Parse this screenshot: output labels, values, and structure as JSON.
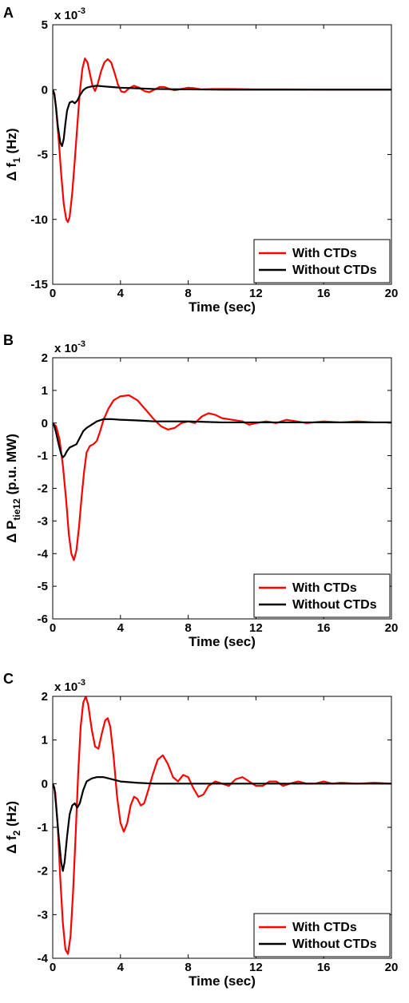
{
  "chart_data": [
    {
      "panel": "A",
      "type": "line",
      "exponent": [
        "x 10",
        "-3"
      ],
      "xlabel": "Time (sec)",
      "ylabel": [
        "Δ f",
        "1",
        " (Hz)"
      ],
      "xlim": [
        0,
        20
      ],
      "ylim": [
        -15,
        5
      ],
      "xticks": [
        0,
        4,
        8,
        12,
        16,
        20
      ],
      "yticks": [
        -15,
        -10,
        -5,
        0,
        5
      ],
      "legend_position": "bottom-right",
      "series": [
        {
          "name": "With CTDs",
          "color": "#ff0000",
          "points": [
            [
              0,
              0
            ],
            [
              0.1,
              -0.3
            ],
            [
              0.2,
              -1.5
            ],
            [
              0.35,
              -3.8
            ],
            [
              0.5,
              -6.5
            ],
            [
              0.65,
              -8.8
            ],
            [
              0.8,
              -10.0
            ],
            [
              0.9,
              -10.2
            ],
            [
              1.0,
              -9.8
            ],
            [
              1.15,
              -8.0
            ],
            [
              1.3,
              -5.5
            ],
            [
              1.45,
              -2.8
            ],
            [
              1.6,
              -0.2
            ],
            [
              1.75,
              1.6
            ],
            [
              1.9,
              2.4
            ],
            [
              2.05,
              2.1
            ],
            [
              2.2,
              1.2
            ],
            [
              2.35,
              0.3
            ],
            [
              2.5,
              -0.1
            ],
            [
              2.65,
              0.4
            ],
            [
              2.85,
              1.4
            ],
            [
              3.05,
              2.1
            ],
            [
              3.25,
              2.35
            ],
            [
              3.45,
              2.1
            ],
            [
              3.65,
              1.3
            ],
            [
              3.85,
              0.4
            ],
            [
              4.05,
              -0.15
            ],
            [
              4.25,
              -0.2
            ],
            [
              4.5,
              0.1
            ],
            [
              4.8,
              0.3
            ],
            [
              5.1,
              0.15
            ],
            [
              5.4,
              -0.1
            ],
            [
              5.7,
              -0.2
            ],
            [
              6.0,
              0.0
            ],
            [
              6.3,
              0.2
            ],
            [
              6.6,
              0.2
            ],
            [
              6.9,
              0.05
            ],
            [
              7.2,
              -0.05
            ],
            [
              7.6,
              0.05
            ],
            [
              8.0,
              0.15
            ],
            [
              8.4,
              0.1
            ],
            [
              8.8,
              0.02
            ],
            [
              9.5,
              0.05
            ],
            [
              10.5,
              0.05
            ],
            [
              12,
              0.02
            ],
            [
              14,
              0.02
            ],
            [
              16,
              0.0
            ],
            [
              18,
              0.0
            ],
            [
              20,
              0.0
            ]
          ]
        },
        {
          "name": "Without CTDs",
          "color": "#000000",
          "points": [
            [
              0,
              0
            ],
            [
              0.1,
              -0.4
            ],
            [
              0.2,
              -1.4
            ],
            [
              0.3,
              -2.8
            ],
            [
              0.45,
              -4.1
            ],
            [
              0.55,
              -4.35
            ],
            [
              0.65,
              -3.8
            ],
            [
              0.75,
              -2.6
            ],
            [
              0.85,
              -1.6
            ],
            [
              1.0,
              -1.0
            ],
            [
              1.15,
              -0.9
            ],
            [
              1.3,
              -1.05
            ],
            [
              1.45,
              -0.85
            ],
            [
              1.6,
              -0.45
            ],
            [
              1.8,
              -0.05
            ],
            [
              2.0,
              0.15
            ],
            [
              2.3,
              0.25
            ],
            [
              2.6,
              0.3
            ],
            [
              3.0,
              0.25
            ],
            [
              3.5,
              0.2
            ],
            [
              4.0,
              0.15
            ],
            [
              5,
              0.1
            ],
            [
              6,
              0.05
            ],
            [
              8,
              0.02
            ],
            [
              10,
              0.0
            ],
            [
              14,
              0.0
            ],
            [
              20,
              0.0
            ]
          ]
        }
      ]
    },
    {
      "panel": "B",
      "type": "line",
      "exponent": [
        "x 10",
        "-3"
      ],
      "xlabel": "Time (sec)",
      "ylabel": [
        "Δ P",
        "tie12",
        " (p.u. MW)"
      ],
      "xlim": [
        0,
        20
      ],
      "ylim": [
        -6,
        2
      ],
      "xticks": [
        0,
        4,
        8,
        12,
        16,
        20
      ],
      "yticks": [
        -6,
        -5,
        -4,
        -3,
        -2,
        -1,
        0,
        1,
        2
      ],
      "legend_position": "bottom-right",
      "series": [
        {
          "name": "With CTDs",
          "color": "#ff0000",
          "points": [
            [
              0,
              0
            ],
            [
              0.2,
              -0.1
            ],
            [
              0.4,
              -0.5
            ],
            [
              0.6,
              -1.3
            ],
            [
              0.8,
              -2.4
            ],
            [
              0.95,
              -3.4
            ],
            [
              1.1,
              -4.0
            ],
            [
              1.25,
              -4.2
            ],
            [
              1.4,
              -3.9
            ],
            [
              1.55,
              -3.2
            ],
            [
              1.7,
              -2.3
            ],
            [
              1.85,
              -1.5
            ],
            [
              2.0,
              -0.9
            ],
            [
              2.2,
              -0.7
            ],
            [
              2.4,
              -0.65
            ],
            [
              2.6,
              -0.55
            ],
            [
              2.8,
              -0.25
            ],
            [
              3.0,
              0.1
            ],
            [
              3.3,
              0.45
            ],
            [
              3.6,
              0.7
            ],
            [
              4.0,
              0.82
            ],
            [
              4.5,
              0.85
            ],
            [
              5.0,
              0.7
            ],
            [
              5.5,
              0.4
            ],
            [
              6.0,
              0.1
            ],
            [
              6.4,
              -0.1
            ],
            [
              6.8,
              -0.2
            ],
            [
              7.2,
              -0.15
            ],
            [
              7.6,
              0.0
            ],
            [
              8.0,
              0.05
            ],
            [
              8.4,
              0.0
            ],
            [
              8.8,
              0.2
            ],
            [
              9.2,
              0.3
            ],
            [
              9.6,
              0.25
            ],
            [
              10.0,
              0.15
            ],
            [
              10.6,
              0.1
            ],
            [
              11.2,
              0.05
            ],
            [
              11.6,
              -0.05
            ],
            [
              12.0,
              0.0
            ],
            [
              12.6,
              0.05
            ],
            [
              13.2,
              0.0
            ],
            [
              13.8,
              0.1
            ],
            [
              14.4,
              0.05
            ],
            [
              15.0,
              0.0
            ],
            [
              16,
              0.05
            ],
            [
              17,
              0.02
            ],
            [
              18,
              0.05
            ],
            [
              19,
              0.02
            ],
            [
              20,
              0.02
            ]
          ]
        },
        {
          "name": "Without CTDs",
          "color": "#000000",
          "points": [
            [
              0,
              0
            ],
            [
              0.1,
              -0.1
            ],
            [
              0.2,
              -0.3
            ],
            [
              0.35,
              -0.65
            ],
            [
              0.5,
              -0.95
            ],
            [
              0.6,
              -1.05
            ],
            [
              0.7,
              -1.0
            ],
            [
              0.85,
              -0.85
            ],
            [
              1.0,
              -0.75
            ],
            [
              1.2,
              -0.7
            ],
            [
              1.4,
              -0.65
            ],
            [
              1.6,
              -0.45
            ],
            [
              1.8,
              -0.25
            ],
            [
              2.0,
              -0.15
            ],
            [
              2.3,
              -0.05
            ],
            [
              2.6,
              0.05
            ],
            [
              3.0,
              0.12
            ],
            [
              3.5,
              0.12
            ],
            [
              4.0,
              0.1
            ],
            [
              5,
              0.08
            ],
            [
              6,
              0.05
            ],
            [
              8,
              0.05
            ],
            [
              10,
              0.02
            ],
            [
              14,
              0.02
            ],
            [
              20,
              0.02
            ]
          ]
        }
      ]
    },
    {
      "panel": "C",
      "type": "line",
      "exponent": [
        "x 10",
        "-3"
      ],
      "xlabel": "Time (sec)",
      "ylabel": [
        "Δ f",
        "2",
        " (Hz)"
      ],
      "xlim": [
        0,
        20
      ],
      "ylim": [
        -4,
        2
      ],
      "xticks": [
        0,
        4,
        8,
        12,
        16,
        20
      ],
      "yticks": [
        -4,
        -3,
        -2,
        -1,
        0,
        1,
        2
      ],
      "legend_position": "bottom-right",
      "series": [
        {
          "name": "With CTDs",
          "color": "#ff0000",
          "points": [
            [
              0,
              0
            ],
            [
              0.15,
              -0.2
            ],
            [
              0.3,
              -1.0
            ],
            [
              0.45,
              -2.2
            ],
            [
              0.6,
              -3.2
            ],
            [
              0.75,
              -3.8
            ],
            [
              0.9,
              -3.9
            ],
            [
              1.05,
              -3.5
            ],
            [
              1.2,
              -2.5
            ],
            [
              1.35,
              -1.2
            ],
            [
              1.5,
              0.2
            ],
            [
              1.65,
              1.3
            ],
            [
              1.8,
              1.85
            ],
            [
              1.95,
              2.0
            ],
            [
              2.1,
              1.8
            ],
            [
              2.3,
              1.25
            ],
            [
              2.5,
              0.85
            ],
            [
              2.7,
              0.8
            ],
            [
              2.9,
              1.15
            ],
            [
              3.1,
              1.45
            ],
            [
              3.25,
              1.5
            ],
            [
              3.4,
              1.3
            ],
            [
              3.6,
              0.6
            ],
            [
              3.8,
              -0.3
            ],
            [
              4.0,
              -0.9
            ],
            [
              4.2,
              -1.1
            ],
            [
              4.4,
              -0.9
            ],
            [
              4.6,
              -0.5
            ],
            [
              4.8,
              -0.3
            ],
            [
              5.0,
              -0.35
            ],
            [
              5.2,
              -0.5
            ],
            [
              5.4,
              -0.45
            ],
            [
              5.6,
              -0.2
            ],
            [
              5.9,
              0.2
            ],
            [
              6.2,
              0.55
            ],
            [
              6.5,
              0.65
            ],
            [
              6.8,
              0.45
            ],
            [
              7.1,
              0.15
            ],
            [
              7.4,
              0.05
            ],
            [
              7.7,
              0.2
            ],
            [
              8.0,
              0.15
            ],
            [
              8.3,
              -0.1
            ],
            [
              8.6,
              -0.3
            ],
            [
              8.9,
              -0.25
            ],
            [
              9.2,
              -0.05
            ],
            [
              9.6,
              0.05
            ],
            [
              10.0,
              0.0
            ],
            [
              10.4,
              -0.05
            ],
            [
              10.8,
              0.1
            ],
            [
              11.2,
              0.15
            ],
            [
              11.6,
              0.05
            ],
            [
              12.0,
              -0.05
            ],
            [
              12.4,
              -0.05
            ],
            [
              12.8,
              0.05
            ],
            [
              13.2,
              0.05
            ],
            [
              13.6,
              -0.05
            ],
            [
              14.0,
              0.0
            ],
            [
              14.5,
              0.05
            ],
            [
              15.0,
              0.0
            ],
            [
              15.5,
              0.0
            ],
            [
              16.0,
              0.05
            ],
            [
              16.5,
              0.0
            ],
            [
              17,
              0.02
            ],
            [
              18,
              0.0
            ],
            [
              19,
              0.02
            ],
            [
              20,
              0.0
            ]
          ]
        },
        {
          "name": "Without CTDs",
          "color": "#000000",
          "points": [
            [
              0,
              0
            ],
            [
              0.1,
              -0.1
            ],
            [
              0.2,
              -0.5
            ],
            [
              0.35,
              -1.2
            ],
            [
              0.5,
              -1.8
            ],
            [
              0.6,
              -2.0
            ],
            [
              0.7,
              -1.8
            ],
            [
              0.85,
              -1.2
            ],
            [
              1.0,
              -0.7
            ],
            [
              1.15,
              -0.5
            ],
            [
              1.3,
              -0.45
            ],
            [
              1.45,
              -0.55
            ],
            [
              1.6,
              -0.45
            ],
            [
              1.8,
              -0.15
            ],
            [
              2.0,
              0.05
            ],
            [
              2.3,
              0.12
            ],
            [
              2.6,
              0.15
            ],
            [
              3.0,
              0.15
            ],
            [
              3.5,
              0.1
            ],
            [
              4.0,
              0.05
            ],
            [
              5,
              0.02
            ],
            [
              6,
              0.0
            ],
            [
              8,
              0.0
            ],
            [
              12,
              0.0
            ],
            [
              20,
              0.0
            ]
          ]
        }
      ]
    }
  ]
}
